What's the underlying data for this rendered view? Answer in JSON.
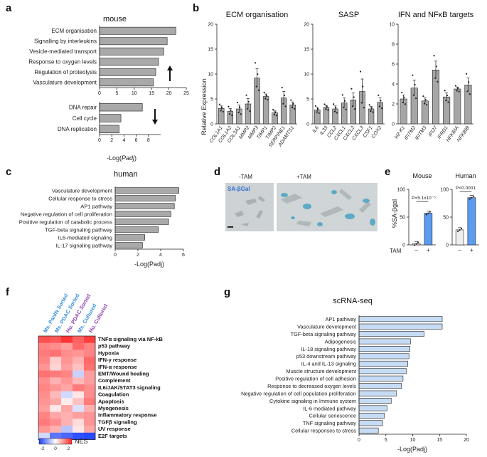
{
  "panels": {
    "a": "a",
    "b": "b",
    "c": "c",
    "d": "d",
    "e": "e",
    "f": "f",
    "g": "g"
  },
  "chart_data": [
    {
      "id": "a-up",
      "type": "bar",
      "orientation": "horizontal",
      "title": "mouse",
      "categories": [
        "ECM organisation",
        "Signalling by interleukins",
        "Vesicle-mediated transport",
        "Response to oxygen levels",
        "Regulation of proteolysis",
        "Vasculature development"
      ],
      "values": [
        22,
        19.5,
        18.5,
        17,
        16.2,
        15.5
      ],
      "xlim": [
        0,
        25
      ],
      "xticks": [
        "0",
        "5",
        "10",
        "15",
        "20",
        "25"
      ],
      "arrow": "up"
    },
    {
      "id": "a-down",
      "type": "bar",
      "orientation": "horizontal",
      "categories": [
        "DNA repair",
        "Cell cycle",
        "DNA replication"
      ],
      "values": [
        7,
        3.5,
        3.2
      ],
      "xlim": [
        0,
        10
      ],
      "xticks": [
        "0",
        "2",
        "4",
        "6",
        "8"
      ],
      "xlabel_pre": "-Log(",
      "xlabel_it": "Padj",
      "xlabel_post": ")",
      "arrow": "down"
    },
    {
      "id": "b",
      "type": "bar",
      "ylabel": "Relative Expression",
      "groups": [
        {
          "title": "ECM organisation",
          "ylim": [
            0,
            20
          ],
          "yticks": [
            "0",
            "5",
            "10",
            "15",
            "20"
          ],
          "categories": [
            "COL1A1",
            "COL1A2",
            "COL3A1",
            "MMP2",
            "MMP3",
            "TIMP1",
            "TIMP2",
            "SERPINE1",
            "ADAMTS1"
          ],
          "values": [
            3.1,
            2.5,
            3.0,
            4.0,
            9.2,
            5.5,
            2.2,
            5.2,
            3.8
          ],
          "errors": [
            0.5,
            0.6,
            0.8,
            1.1,
            1.9,
            0.5,
            0.4,
            1.3,
            0.6
          ]
        },
        {
          "title": "SASP",
          "ylim": [
            0,
            20
          ],
          "yticks": [
            "0",
            "5",
            "10",
            "15",
            "20"
          ],
          "categories": [
            "IL6",
            "IL33",
            "CCL2",
            "CXCL1",
            "CXCL2",
            "CXCL3",
            "CSF1",
            "COX2"
          ],
          "values": [
            2.8,
            3.3,
            3.0,
            4.2,
            4.8,
            6.5,
            3.0,
            4.3
          ],
          "errors": [
            0.5,
            0.4,
            0.6,
            1.0,
            1.4,
            2.5,
            0.5,
            0.9
          ]
        },
        {
          "title": "IFN and NFκB targets",
          "ylim": [
            0,
            10
          ],
          "yticks": [
            "0",
            "2",
            "4",
            "6",
            "8",
            "10"
          ],
          "categories": [
            "H2-K1",
            "IFITM2",
            "IFITM3",
            "IFI27",
            "IFRD1",
            "NFKBIA",
            "NFKBIB"
          ],
          "values": [
            2.5,
            3.6,
            2.3,
            5.4,
            2.7,
            3.5,
            3.9
          ],
          "errors": [
            0.4,
            0.8,
            0.3,
            0.9,
            0.4,
            0.2,
            0.7
          ]
        }
      ]
    },
    {
      "id": "c",
      "type": "bar",
      "orientation": "horizontal",
      "title": "human",
      "categories": [
        "Vasculature development",
        "Cellular response to stress",
        "AP1 pathway",
        "Negative regulation of cell proliferation",
        "Positive regulation of catabolic process",
        "TGF-beta signaling pathway",
        "IL6-mediated signaling",
        "IL-17 signaling pathway"
      ],
      "values": [
        5.6,
        5.3,
        5.2,
        4.9,
        4.7,
        3.8,
        2.6,
        2.4
      ],
      "xlim": [
        0,
        6
      ],
      "xticks": [
        "0",
        "2",
        "4",
        "6"
      ],
      "xlabel": "-Log(Padj)"
    },
    {
      "id": "e",
      "type": "bar",
      "ylabel": "%SA-βgal",
      "groups": [
        {
          "title": "Mouse",
          "categories": [
            "–",
            "+"
          ],
          "values": [
            2,
            57
          ],
          "ylim": [
            0,
            100
          ],
          "yticks": [
            "0",
            "50",
            "100"
          ],
          "pvalue": "P=5.1x10⁻⁵",
          "colors": [
            "#eeeeee",
            "#5b9bf0"
          ]
        },
        {
          "title": "Human",
          "categories": [
            "–",
            "+"
          ],
          "values": [
            27,
            85
          ],
          "ylim": [
            0,
            100
          ],
          "yticks": [
            "0",
            "50",
            "100"
          ],
          "pvalue": "P<0.0001",
          "colors": [
            "#eeeeee",
            "#5b9bf0"
          ]
        }
      ],
      "xlabel": "TAM"
    },
    {
      "id": "f",
      "type": "heatmap",
      "columns": [
        "Ms. PanIN Sorted",
        "Ms. PDAC Sorted",
        "Hu. PDAC Sorted",
        "Ms. Cultured",
        "Hu. Cultured"
      ],
      "column_colors": [
        "#3a8fd9",
        "#3a8fd9",
        "#8e44ad",
        "#3a8fd9",
        "#8e44ad"
      ],
      "rows": [
        "TNFα signaling via NF-kB",
        "p53 pathway",
        "Hypoxia",
        "IFN-γ response",
        "IFN-α response",
        "EMT/Wound healing",
        "Complement",
        "IL6/JAK/STAT3 signaling",
        "Coagulation",
        "Apoptosis",
        "Myogenesis",
        "Inflammatory response",
        "TGFβ signaling",
        "UV response",
        "E2F targets"
      ],
      "values": [
        [
          2.0,
          1.9,
          2.3,
          1.8,
          2.2
        ],
        [
          1.4,
          1.3,
          1.1,
          1.7,
          1.4
        ],
        [
          1.5,
          1.6,
          1.3,
          1.2,
          1.4
        ],
        [
          1.4,
          0.6,
          1.2,
          0.9,
          1.7
        ],
        [
          1.2,
          0.5,
          1.1,
          0.7,
          1.6
        ],
        [
          1.6,
          1.5,
          1.4,
          -0.6,
          1.1
        ],
        [
          1.3,
          0.9,
          1.2,
          0.8,
          1.1
        ],
        [
          1.4,
          1.2,
          1.0,
          1.5,
          1.3
        ],
        [
          1.3,
          0.8,
          -0.5,
          0.3,
          1.3
        ],
        [
          1.2,
          1.0,
          0.2,
          0.7,
          1.5
        ],
        [
          1.1,
          0.3,
          1.0,
          -0.4,
          0.9
        ],
        [
          1.4,
          1.0,
          0.9,
          1.1,
          1.2
        ],
        [
          1.5,
          1.3,
          0.9,
          0.4,
          1.2
        ],
        [
          1.2,
          0.9,
          -0.8,
          0.3,
          1.0
        ],
        [
          -0.5,
          -1.8,
          -2.0,
          -2.3,
          -2.4
        ]
      ],
      "colorbar": {
        "label": "NES",
        "ticks": [
          "-2",
          "0",
          "2"
        ],
        "range": [
          -2.5,
          2.5
        ]
      }
    },
    {
      "id": "g",
      "type": "bar",
      "orientation": "horizontal",
      "title": "scRNA-seq",
      "categories": [
        "AP1 pathway",
        "Vasculature development",
        "TGF-beta signaling pathway",
        "Adipogenesis",
        "IL-18 signaling pathway",
        "p53 downstream pathway",
        "IL-4 and IL-13 signaling",
        "Muscle structure development",
        "Positive regulation of cell adhesion",
        "Response to decreased oxygen levels",
        "Negative regulation of cell population proliferation",
        "Cytokine signaling in Immune system",
        "IL-6 mediated pathway",
        "Cellular senescence",
        "TNF signaling pathway",
        "Cellular responses to stress"
      ],
      "values": [
        15.5,
        15.5,
        12.1,
        9.6,
        9.5,
        9.3,
        9.1,
        8.8,
        8.2,
        7.9,
        7.0,
        6.0,
        5.2,
        4.7,
        4.4,
        3.6
      ],
      "xlim": [
        0,
        20
      ],
      "xticks": [
        "0",
        "5",
        "10",
        "15",
        "20"
      ],
      "xlabel": "-Log(Padj)"
    }
  ],
  "panel_d": {
    "left_label": "-TAM",
    "right_label": "+TAM",
    "stain_label": "SA-βGal"
  }
}
